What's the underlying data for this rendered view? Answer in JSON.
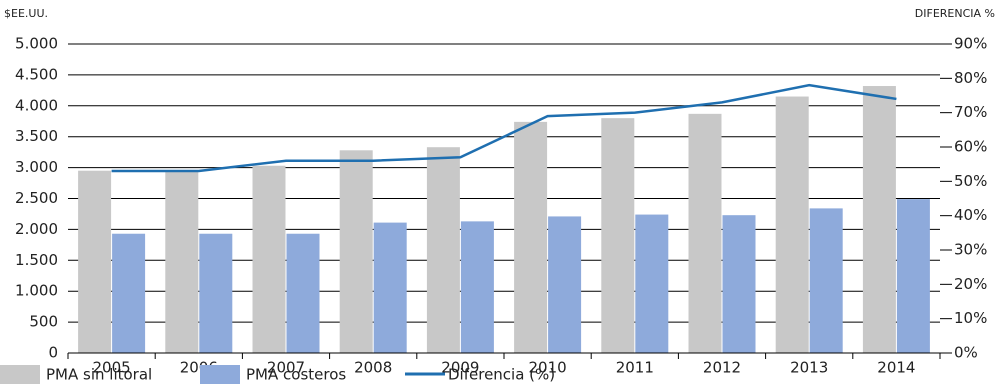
{
  "chart_data": {
    "type": "bar",
    "y_label": "$EE.UU.",
    "y2_label": "DIFERENCIA %",
    "categories": [
      "2005",
      "2006",
      "2007",
      "2008",
      "2009",
      "2010",
      "2011",
      "2012",
      "2013",
      "2014"
    ],
    "series": [
      {
        "name": "PMA sin litoral",
        "color": "#c8c8c8",
        "type": "bar",
        "values": [
          2950,
          2950,
          3030,
          3280,
          3330,
          3740,
          3800,
          3870,
          4150,
          4320
        ]
      },
      {
        "name": "PMA costeros",
        "color": "#8eaadb",
        "type": "bar",
        "values": [
          1930,
          1930,
          1930,
          2110,
          2130,
          2210,
          2240,
          2230,
          2340,
          2490
        ]
      },
      {
        "name": "Diferencia (%)",
        "color": "#1f6fb0",
        "type": "line",
        "axis": "y2",
        "values": [
          53,
          53,
          56,
          56,
          57,
          69,
          70,
          73,
          78,
          74
        ]
      }
    ],
    "ylim": [
      0,
      5000
    ],
    "yticks": [
      0,
      {
        "value": 500,
        "label": "500"
      },
      {
        "value": 1000,
        "label": "1.000"
      },
      {
        "value": 1500,
        "label": "1.500"
      },
      {
        "value": 2000,
        "label": "2.000"
      },
      {
        "value": 2500,
        "label": "2.500"
      },
      {
        "value": 3000,
        "label": "3.000"
      },
      {
        "value": 3500,
        "label": "3.500"
      },
      {
        "value": 4000,
        "label": "4.000"
      },
      {
        "value": 4500,
        "label": "4.500"
      },
      {
        "value": 5000,
        "label": "5.000"
      }
    ],
    "y2lim": [
      0,
      90
    ],
    "y2ticks": [
      {
        "value": 0,
        "label": "0%"
      },
      {
        "value": 10,
        "label": "10%"
      },
      {
        "value": 20,
        "label": "20%"
      },
      {
        "value": 30,
        "label": "30%"
      },
      {
        "value": 40,
        "label": "40%"
      },
      {
        "value": 50,
        "label": "50%"
      },
      {
        "value": 60,
        "label": "60%"
      },
      {
        "value": 70,
        "label": "70%"
      },
      {
        "value": 80,
        "label": "80%"
      },
      {
        "value": 90,
        "label": "90%"
      }
    ],
    "grid": true
  }
}
